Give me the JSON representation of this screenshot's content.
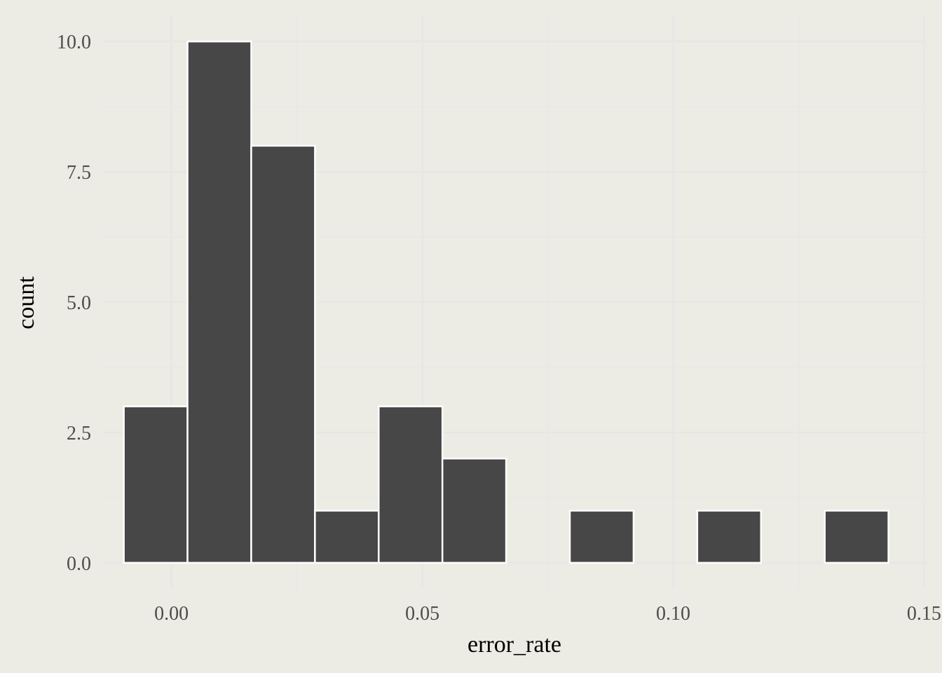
{
  "chart_data": {
    "type": "bar",
    "subtype": "histogram",
    "xlabel": "error_rate",
    "ylabel": "count",
    "bin_width": 0.0127,
    "bins": [
      {
        "x_start": -0.0095,
        "x_end": 0.0032,
        "count": 3
      },
      {
        "x_start": 0.0032,
        "x_end": 0.0159,
        "count": 10
      },
      {
        "x_start": 0.0159,
        "x_end": 0.0286,
        "count": 8
      },
      {
        "x_start": 0.0286,
        "x_end": 0.0413,
        "count": 1
      },
      {
        "x_start": 0.0413,
        "x_end": 0.054,
        "count": 3
      },
      {
        "x_start": 0.054,
        "x_end": 0.0667,
        "count": 2
      },
      {
        "x_start": 0.0667,
        "x_end": 0.0794,
        "count": 0
      },
      {
        "x_start": 0.0794,
        "x_end": 0.0921,
        "count": 1
      },
      {
        "x_start": 0.0921,
        "x_end": 0.1048,
        "count": 0
      },
      {
        "x_start": 0.1048,
        "x_end": 0.1175,
        "count": 1
      },
      {
        "x_start": 0.1175,
        "x_end": 0.1302,
        "count": 0
      },
      {
        "x_start": 0.1302,
        "x_end": 0.1429,
        "count": 1
      }
    ],
    "x_ticks": [
      {
        "value": 0.0,
        "label": "0.00"
      },
      {
        "value": 0.05,
        "label": "0.05"
      },
      {
        "value": 0.1,
        "label": "0.10"
      },
      {
        "value": 0.15,
        "label": "0.15"
      }
    ],
    "y_ticks": [
      {
        "value": 0.0,
        "label": "0.0"
      },
      {
        "value": 2.5,
        "label": "2.5"
      },
      {
        "value": 5.0,
        "label": "5.0"
      },
      {
        "value": 7.5,
        "label": "7.5"
      },
      {
        "value": 10.0,
        "label": "10.0"
      }
    ],
    "xlim": [
      -0.0135,
      0.1505
    ],
    "ylim": [
      -0.5,
      10.5
    ],
    "grid": true,
    "legend": "none",
    "colors": {
      "background": "#ECECE4",
      "bar_fill": "#474747",
      "bar_outline": "#FFFFFF",
      "grid": "#E6E6E6",
      "tick_text": "#4D4D4D",
      "title_text": "#000000"
    }
  }
}
